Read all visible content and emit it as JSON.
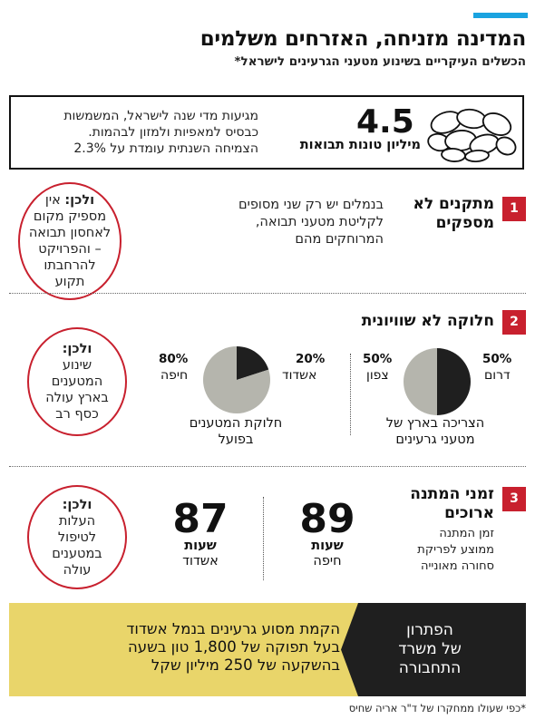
{
  "header": {
    "title": "המדינה מזניחה, האזרחים משלמים",
    "subtitle": "הכשלים העיקריים בשינוע מטעני הגרעינים לישראל*"
  },
  "stat": {
    "value": "4.5",
    "unit": "מיליון טונות תבואות",
    "line1": "מגיעות מדי שנה לישראל, המשמשות",
    "line2": "כבסיס למאפיות ולמזון לבהמות.",
    "line3": "הצמיחה השנתית עומדת על 2.3%",
    "icon": "beans-icon"
  },
  "section1": {
    "number": "1",
    "title_line1": "מתקנים לא",
    "title_line2": "מספקים",
    "text_line1": "בנמלים יש רק שני מסופים",
    "text_line2": "לקליטת מטעני תבואה,",
    "text_line3": "המרוחקים מהם",
    "circle_bold": "ולכן:",
    "circle_line1": "אין",
    "circle_line2": "מספיק מקום",
    "circle_line3": "לאחסון תבואה",
    "circle_line4": "– והפרויקט",
    "circle_line5": "להרחבתו",
    "circle_line6": "תקוע"
  },
  "section2": {
    "number": "2",
    "title": "חלוקה לא שוויונית",
    "circle_bold": "ולכן:",
    "circle_line1": "שינוע",
    "circle_line2": "המטענים",
    "circle_line3": "בארץ עולה",
    "circle_line4": "כסף רב",
    "pie_demand": {
      "caption_line1": "הצריכה בארץ של",
      "caption_line2": "מטעני גרעינים",
      "south_pct": "50%",
      "south_label": "דרום",
      "north_pct": "50%",
      "north_label": "צפון",
      "values": [
        50,
        50
      ]
    },
    "pie_actual": {
      "caption_line1": "חלוקת המטענים",
      "caption_line2": "בפועל",
      "ashdod_pct": "20%",
      "ashdod_label": "אשדוד",
      "haifa_pct": "80%",
      "haifa_label": "חיפה",
      "values": [
        20,
        80
      ]
    },
    "colors": {
      "dark": "#1f1f1f",
      "light": "#b5b5ad"
    }
  },
  "section3": {
    "number": "3",
    "title_line1": "זמני המתנה",
    "title_line2": "ארוכים",
    "sub_line1": "זמן המתנה",
    "sub_line2": "ממוצע לפריקת",
    "sub_line3": "סחורה מאונייה",
    "haifa_value": "89",
    "haifa_unit": "שעות",
    "haifa_label": "חיפה",
    "ashdod_value": "87",
    "ashdod_unit": "שעות",
    "ashdod_label": "אשדוד",
    "circle_bold": "ולכן:",
    "circle_line1": "העלות",
    "circle_line2": "לטיפול",
    "circle_line3": "במטענים",
    "circle_line4": "עולה"
  },
  "solution": {
    "title_line1": "הפתרון",
    "title_line2": "של משרד",
    "title_line3": "התחבורה",
    "line1": "הקמת מסוע גרעינים בנמל אשדוד",
    "line2": "בעל תפוקה של 1,800 טון בשעה",
    "line3": "בהשקעה של 250 מיליון שקל"
  },
  "footnote": "*כפי שעולו ממחקרו של ד\"ר אריה שחיס",
  "colors": {
    "accent": "#1aa3e0",
    "red": "#c8202e",
    "yellow": "#e9d56a",
    "black": "#1f1f1f"
  }
}
